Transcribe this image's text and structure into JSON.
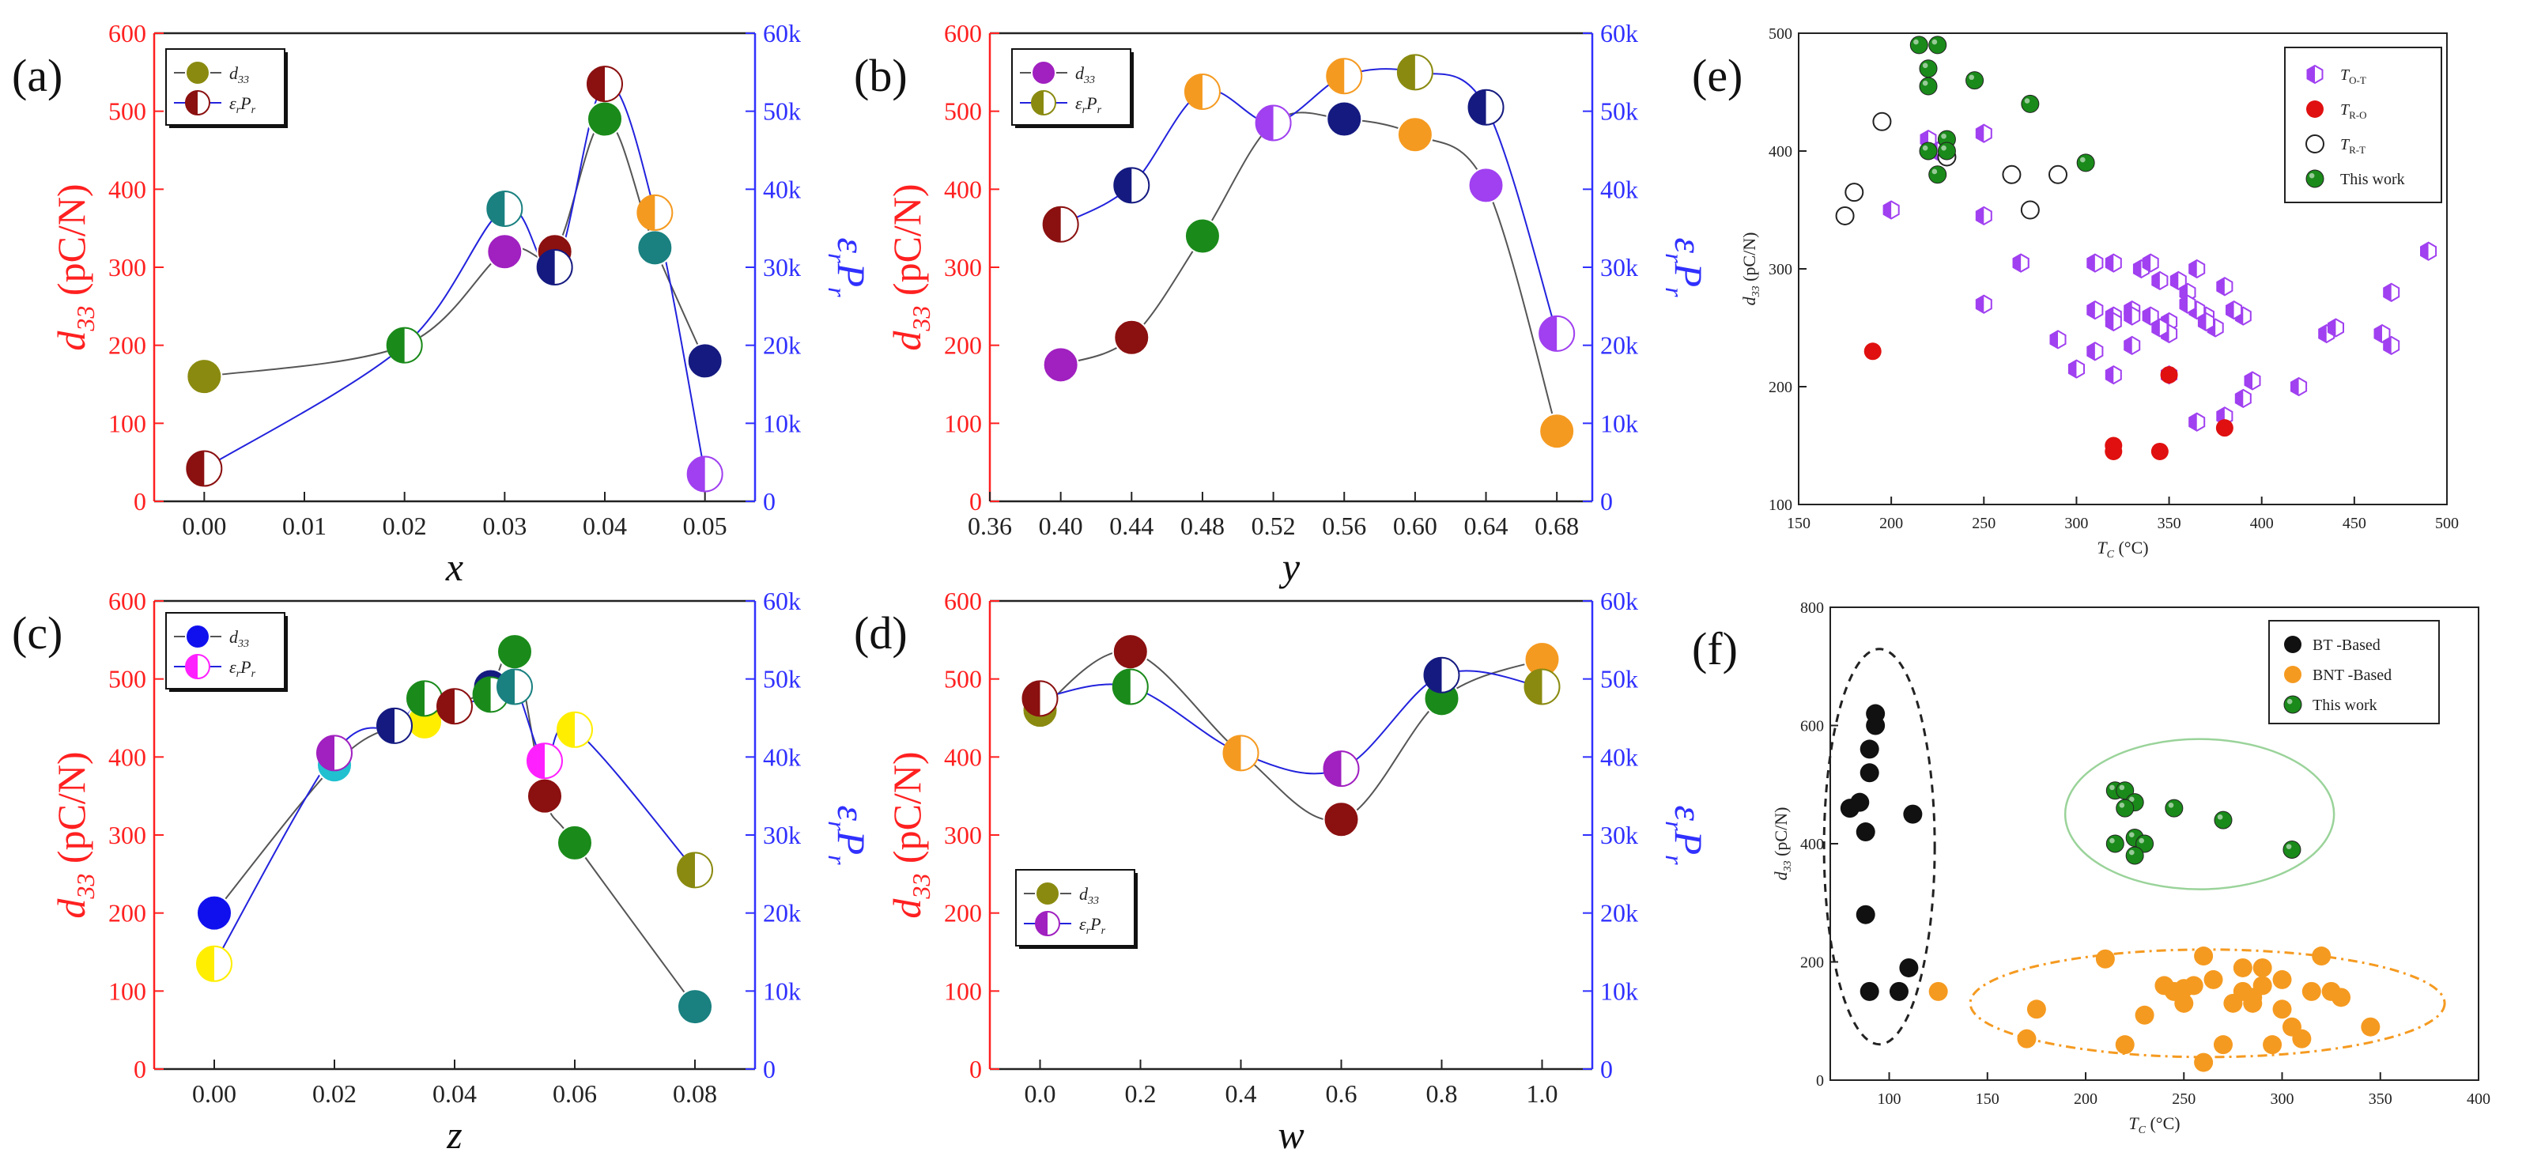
{
  "colors": {
    "left_axis": "#ff2020",
    "right_axis": "#3030ff",
    "black_line": "#555555",
    "blue_line": "#2222dd",
    "olive": "#8a8a10",
    "purple": "#a020c0",
    "violet": "#a040f0",
    "red": "#e01010",
    "green": "#1a8a1a",
    "orange": "#f59a20",
    "navy": "#151a80",
    "teal": "#1a8080",
    "darkred": "#8b1010",
    "blue": "#1010ee",
    "magenta": "#ff20ff",
    "yellow": "#ffee00",
    "cyan": "#20c0d0"
  },
  "chart_data": [
    {
      "id": "a",
      "panel_label": "(a)",
      "type": "scatter",
      "xlabel": "x",
      "ylabel_left": "d33 (pC/N)",
      "ylabel_right": "εrPr",
      "x_ticks": [
        "0.00",
        "0.01",
        "0.02",
        "0.03",
        "0.04",
        "0.05"
      ],
      "y_left_ticks": [
        "0",
        "100",
        "200",
        "300",
        "400",
        "500",
        "600"
      ],
      "y_right_ticks": [
        "0",
        "10k",
        "20k",
        "30k",
        "40k",
        "50k",
        "60k"
      ],
      "xlim": [
        -0.005,
        0.055
      ],
      "ylim_left": [
        0,
        600
      ],
      "ylim_right": [
        0,
        60000
      ],
      "legend": [
        "d33",
        "εrPr"
      ],
      "series": [
        {
          "name": "d33",
          "axis": "left",
          "x": [
            0.0,
            0.02,
            0.03,
            0.035,
            0.04,
            0.045,
            0.05
          ],
          "y": [
            160,
            200,
            320,
            320,
            490,
            325,
            180
          ]
        },
        {
          "name": "εrPr",
          "axis": "right",
          "x": [
            0.0,
            0.02,
            0.03,
            0.035,
            0.04,
            0.045,
            0.05
          ],
          "y": [
            4200,
            20000,
            37500,
            30000,
            53500,
            37000,
            3500
          ]
        }
      ],
      "marker_colors": [
        [
          "darkred",
          "white"
        ],
        [
          "green",
          "white"
        ],
        [
          "teal",
          "white"
        ],
        [
          "navy",
          "white"
        ],
        [
          "orange",
          "white"
        ],
        [
          "violet",
          "white"
        ],
        [
          "magenta",
          "white"
        ],
        [
          "olive",
          "white"
        ]
      ]
    },
    {
      "id": "b",
      "panel_label": "(b)",
      "type": "scatter",
      "xlabel": "y",
      "ylabel_left": "d33 (pC/N)",
      "ylabel_right": "εrPr",
      "x_ticks": [
        "0.36",
        "0.40",
        "0.44",
        "0.48",
        "0.52",
        "0.56",
        "0.60",
        "0.64",
        "0.68"
      ],
      "y_left_ticks": [
        "0",
        "100",
        "200",
        "300",
        "400",
        "500",
        "600"
      ],
      "y_right_ticks": [
        "0",
        "10k",
        "20k",
        "30k",
        "40k",
        "50k",
        "60k"
      ],
      "xlim": [
        0.36,
        0.7
      ],
      "ylim_left": [
        0,
        600
      ],
      "ylim_right": [
        0,
        60000
      ],
      "legend": [
        "d33",
        "εrPr"
      ],
      "series": [
        {
          "name": "d33",
          "axis": "left",
          "x": [
            0.4,
            0.44,
            0.48,
            0.52,
            0.56,
            0.6,
            0.64,
            0.68
          ],
          "y": [
            175,
            210,
            340,
            485,
            490,
            470,
            405,
            90
          ]
        },
        {
          "name": "εrPr",
          "axis": "right",
          "x": [
            0.4,
            0.44,
            0.48,
            0.52,
            0.56,
            0.6,
            0.64,
            0.68
          ],
          "y": [
            35500,
            40500,
            52500,
            48500,
            54500,
            55000,
            50500,
            21500
          ]
        }
      ]
    },
    {
      "id": "c",
      "panel_label": "(c)",
      "type": "scatter",
      "xlabel": "z",
      "ylabel_left": "d33 (pC/N)",
      "ylabel_right": "εrPr",
      "x_ticks": [
        "0.00",
        "0.02",
        "0.04",
        "0.06",
        "0.08"
      ],
      "y_left_ticks": [
        "0",
        "100",
        "200",
        "300",
        "400",
        "500",
        "600"
      ],
      "y_right_ticks": [
        "0",
        "10k",
        "20k",
        "30k",
        "40k",
        "50k",
        "60k"
      ],
      "xlim": [
        -0.01,
        0.09
      ],
      "ylim_left": [
        0,
        600
      ],
      "ylim_right": [
        0,
        60000
      ],
      "legend": [
        "d33",
        "εrPr"
      ],
      "series": [
        {
          "name": "d33",
          "axis": "left",
          "x": [
            0.0,
            0.02,
            0.03,
            0.035,
            0.04,
            0.046,
            0.05,
            0.055,
            0.06,
            0.08
          ],
          "y": [
            200,
            390,
            440,
            445,
            465,
            490,
            535,
            350,
            290,
            80
          ]
        },
        {
          "name": "εrPr",
          "axis": "right",
          "x": [
            0.0,
            0.02,
            0.03,
            0.035,
            0.04,
            0.046,
            0.05,
            0.055,
            0.06,
            0.08
          ],
          "y": [
            13500,
            40500,
            44000,
            47500,
            46500,
            48000,
            49000,
            39500,
            43500,
            25500
          ]
        }
      ]
    },
    {
      "id": "d",
      "panel_label": "(d)",
      "type": "scatter",
      "xlabel": "w",
      "ylabel_left": "d33 (pC/N)",
      "ylabel_right": "εrPr",
      "x_ticks": [
        "0.0",
        "0.2",
        "0.4",
        "0.6",
        "0.8",
        "1.0"
      ],
      "y_left_ticks": [
        "0",
        "100",
        "200",
        "300",
        "400",
        "500",
        "600"
      ],
      "y_right_ticks": [
        "0",
        "10k",
        "20k",
        "30k",
        "40k",
        "50k",
        "60k"
      ],
      "xlim": [
        -0.1,
        1.1
      ],
      "ylim_left": [
        0,
        600
      ],
      "ylim_right": [
        0,
        60000
      ],
      "legend": [
        "d33",
        "εrPr"
      ],
      "series": [
        {
          "name": "d33",
          "axis": "left",
          "x": [
            0.0,
            0.18,
            0.4,
            0.6,
            0.8,
            1.0
          ],
          "y": [
            460,
            535,
            405,
            320,
            475,
            525
          ]
        },
        {
          "name": "εrPr",
          "axis": "right",
          "x": [
            0.0,
            0.18,
            0.4,
            0.6,
            0.8,
            1.0
          ],
          "y": [
            47500,
            49000,
            40500,
            38500,
            50500,
            49000
          ]
        }
      ]
    },
    {
      "id": "e",
      "panel_label": "(e)",
      "type": "scatter",
      "xlabel": "TC (°C)",
      "ylabel": "d33 (pC/N)",
      "x_ticks": [
        "150",
        "200",
        "250",
        "300",
        "350",
        "400",
        "450",
        "500"
      ],
      "y_ticks": [
        "100",
        "200",
        "300",
        "400",
        "500"
      ],
      "xlim": [
        150,
        500
      ],
      "ylim": [
        100,
        500
      ],
      "legend": [
        "TO-T",
        "TR-O",
        "TR-T",
        "This work"
      ],
      "series": [
        {
          "name": "TO-T",
          "x": [
            200,
            220,
            250,
            225,
            250,
            270,
            310,
            320,
            335,
            340,
            345,
            350,
            355,
            360,
            365,
            370,
            380,
            390,
            310,
            320,
            330,
            340,
            350,
            365,
            375,
            385,
            290,
            300,
            320,
            330,
            350,
            365,
            390,
            420,
            435,
            440,
            465,
            470,
            470,
            490,
            345,
            360,
            370,
            380,
            395,
            250,
            310,
            320,
            330,
            270
          ],
          "y": [
            350,
            410,
            415,
            400,
            345,
            305,
            305,
            305,
            300,
            305,
            290,
            255,
            290,
            280,
            300,
            260,
            285,
            260,
            265,
            260,
            265,
            260,
            245,
            265,
            250,
            265,
            240,
            215,
            210,
            235,
            210,
            170,
            190,
            200,
            245,
            250,
            245,
            235,
            280,
            315,
            250,
            270,
            255,
            175,
            205,
            270,
            230,
            255,
            260,
            305
          ]
        },
        {
          "name": "TR-O",
          "x": [
            190,
            320,
            320,
            345,
            350,
            380
          ],
          "y": [
            230,
            150,
            145,
            145,
            210,
            165
          ]
        },
        {
          "name": "TR-T",
          "x": [
            175,
            180,
            195,
            230,
            265,
            275,
            290
          ],
          "y": [
            345,
            365,
            425,
            395,
            380,
            350,
            380
          ]
        },
        {
          "name": "This work",
          "x": [
            215,
            225,
            220,
            220,
            220,
            230,
            230,
            225,
            245,
            275,
            305
          ],
          "y": [
            490,
            490,
            470,
            455,
            400,
            410,
            400,
            380,
            460,
            440,
            390
          ]
        }
      ]
    },
    {
      "id": "f",
      "panel_label": "(f)",
      "type": "scatter",
      "xlabel": "TC (°C)",
      "ylabel": "d33 (pC/N)",
      "x_ticks": [
        "100",
        "150",
        "200",
        "250",
        "300",
        "350",
        "400"
      ],
      "y_ticks": [
        "0",
        "200",
        "400",
        "600",
        "800"
      ],
      "xlim": [
        70,
        400
      ],
      "ylim": [
        0,
        800
      ],
      "legend": [
        "BT -Based",
        "BNT -Based",
        "This work"
      ],
      "series": [
        {
          "name": "BT -Based",
          "x": [
            80,
            85,
            88,
            90,
            90,
            93,
            93,
            88,
            90,
            110,
            105,
            112
          ],
          "y": [
            460,
            470,
            420,
            520,
            560,
            600,
            620,
            280,
            150,
            190,
            150,
            450
          ]
        },
        {
          "name": "BNT -Based",
          "x": [
            125,
            170,
            175,
            210,
            220,
            230,
            240,
            245,
            250,
            250,
            255,
            260,
            260,
            265,
            270,
            275,
            280,
            280,
            285,
            285,
            290,
            290,
            295,
            300,
            300,
            305,
            310,
            315,
            320,
            325,
            330,
            345
          ],
          "y": [
            150,
            70,
            120,
            205,
            60,
            110,
            160,
            150,
            130,
            155,
            160,
            210,
            30,
            170,
            60,
            130,
            150,
            190,
            130,
            140,
            160,
            190,
            60,
            120,
            170,
            90,
            70,
            150,
            210,
            150,
            140,
            90
          ]
        },
        {
          "name": "This work",
          "x": [
            215,
            220,
            225,
            220,
            215,
            225,
            230,
            225,
            245,
            270,
            305
          ],
          "y": [
            490,
            490,
            470,
            460,
            400,
            410,
            400,
            380,
            460,
            440,
            390
          ]
        }
      ]
    }
  ]
}
